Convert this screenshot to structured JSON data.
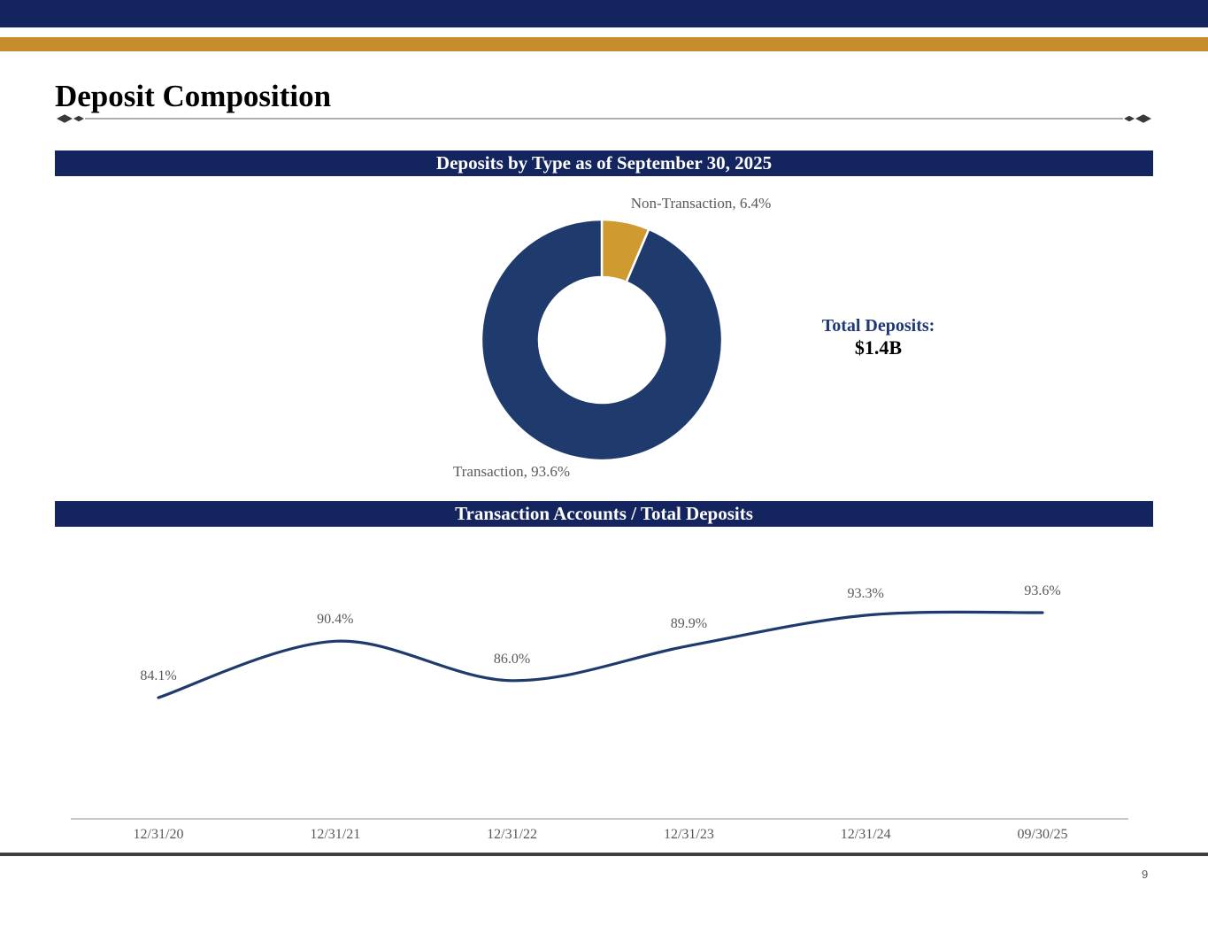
{
  "header": {
    "title": "Deposit Composition"
  },
  "donut_section": {
    "banner": "Deposits by Type as of September 30, 2025",
    "label_non_transaction": "Non-Transaction, 6.4%",
    "label_transaction": "Transaction, 93.6%",
    "total_label": "Total Deposits:",
    "total_value": "$1.4B"
  },
  "line_section": {
    "banner": "Transaction Accounts / Total Deposits"
  },
  "footer": {
    "page_number": "9"
  },
  "colors": {
    "navy_bar": "#14245E",
    "gold_bar": "#C78C2B",
    "donut_navy": "#1F3A6C",
    "donut_gold": "#CF9A30",
    "line_navy": "#1F3A6C",
    "total_label_navy": "#1E3876",
    "gray_text": "#595959",
    "axis_gray": "#A6A6A6",
    "divider_dark": "#3F3F3F"
  },
  "chart_data": [
    {
      "type": "pie",
      "donut": true,
      "title": "Deposits by Type as of September 30, 2025",
      "labels": [
        "Transaction",
        "Non-Transaction"
      ],
      "values": [
        93.6,
        6.4
      ],
      "colors": [
        "#1F3A6C",
        "#CF9A30"
      ],
      "first_slice": "Non-Transaction",
      "start_angle_deg": 0,
      "annotation": "Total Deposits: $1.4B",
      "legend": "none"
    },
    {
      "type": "line",
      "title": "Transaction Accounts / Total Deposits",
      "categories": [
        "12/31/20",
        "12/31/21",
        "12/31/22",
        "12/31/23",
        "12/31/24",
        "09/30/25"
      ],
      "values": [
        84.1,
        90.4,
        86.0,
        89.9,
        93.3,
        93.6
      ],
      "data_labels": [
        "84.1%",
        "90.4%",
        "86.0%",
        "89.9%",
        "93.3%",
        "93.6%"
      ],
      "unit": "%",
      "smoothed": true,
      "grid": false,
      "legend": "none",
      "ylim": [
        82,
        96
      ]
    }
  ]
}
